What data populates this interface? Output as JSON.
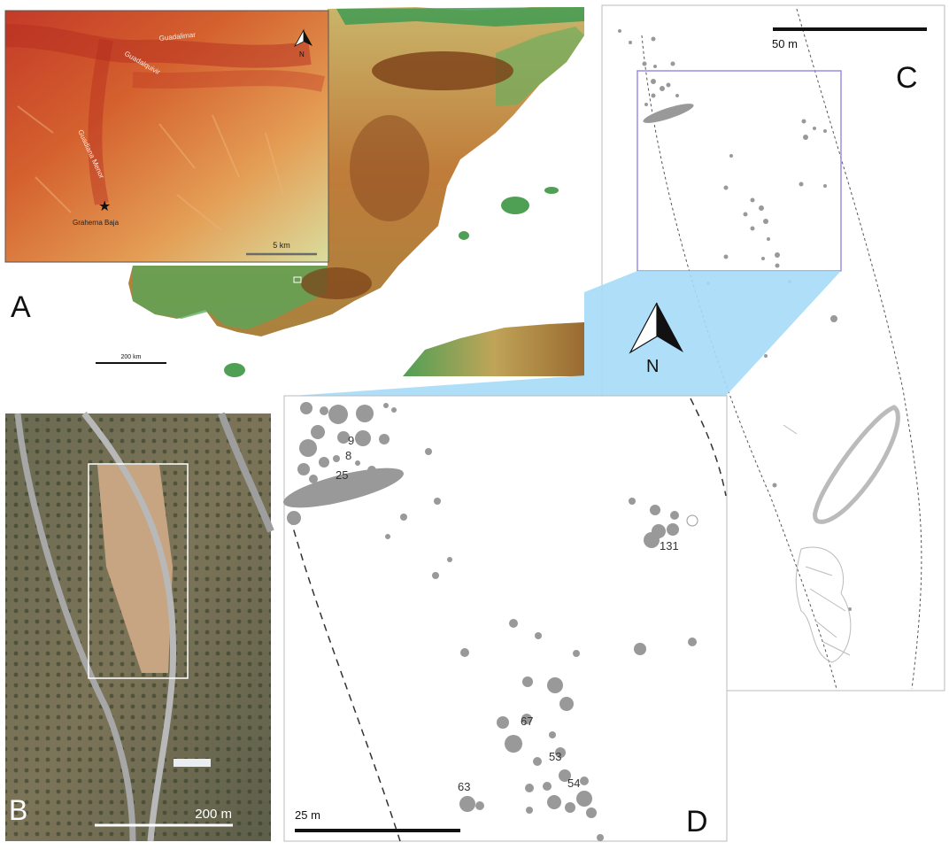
{
  "panels": {
    "a": {
      "letter": "A"
    },
    "b": {
      "letter": "B"
    },
    "c": {
      "letter": "C"
    },
    "d": {
      "letter": "D"
    }
  },
  "inset_a": {
    "rivers": [
      "Guadalimar",
      "Guadalquivir",
      "Guadiana Menor"
    ],
    "site_label": "Graherna Baja",
    "scale_label": "5 km",
    "north_label": "N"
  },
  "overview": {
    "scale_label": "200 km"
  },
  "photo_b": {
    "scale_label": "200 m"
  },
  "plan_c": {
    "scale_label": "50 m"
  },
  "north_arrow": {
    "label": "N"
  },
  "plan_d": {
    "scale_label": "25 m",
    "feature_labels": [
      "9",
      "8",
      "25",
      "131",
      "67",
      "53",
      "54",
      "63"
    ]
  },
  "colors": {
    "feature_fill": "#999999",
    "callout_fill": "#a6dcf7",
    "zoom_box_stroke": "#9a8ee8",
    "sea": "#ffffff",
    "lowland_green": "#3f9a52",
    "upland_brown": "#8a4b20"
  }
}
